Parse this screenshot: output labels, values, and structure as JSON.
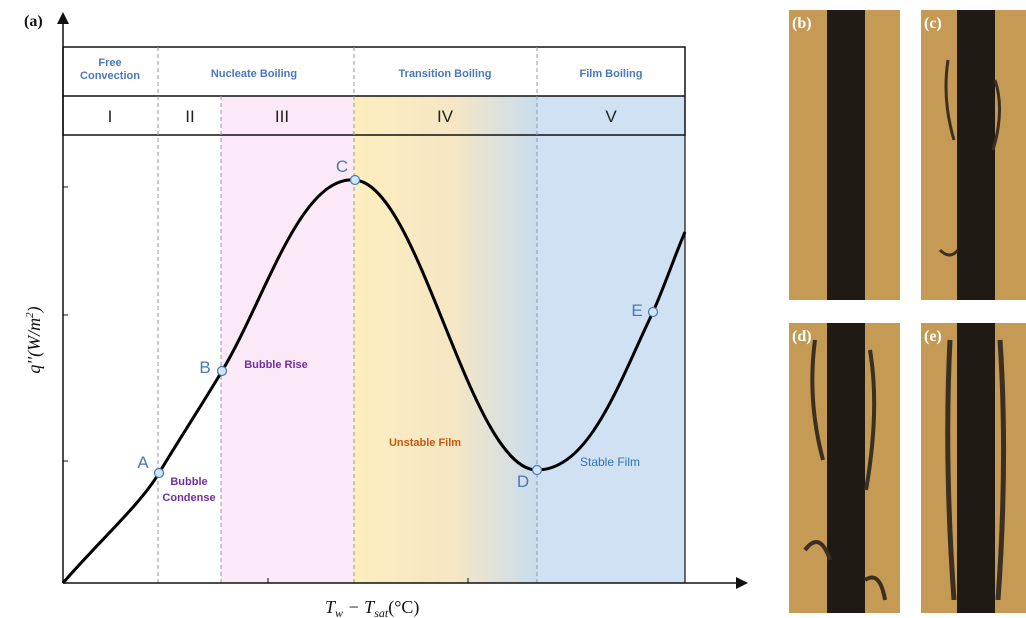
{
  "panel_a": {
    "label": "(a)",
    "regimes": [
      [
        "Free",
        "Convection"
      ],
      [
        "Nucleate Boiling"
      ],
      [
        "Transition Boiling"
      ],
      [
        "Film Boiling"
      ]
    ],
    "stages": [
      "I",
      "II",
      "III",
      "IV",
      "V"
    ],
    "points": [
      "A",
      "B",
      "C",
      "D",
      "E"
    ],
    "annotations": {
      "bubble_condense": [
        "Bubble",
        "Condense"
      ],
      "bubble_rise": "Bubble Rise",
      "unstable_film": "Unstable Film",
      "stable_film": "Stable Film"
    },
    "x_label": [
      "T",
      "w",
      " − T",
      "sat",
      "(°C)"
    ],
    "y_label": [
      "q''(W/m",
      "2",
      ")"
    ]
  },
  "photos": [
    "(b)",
    "(c)",
    "(d)",
    "(e)"
  ]
}
